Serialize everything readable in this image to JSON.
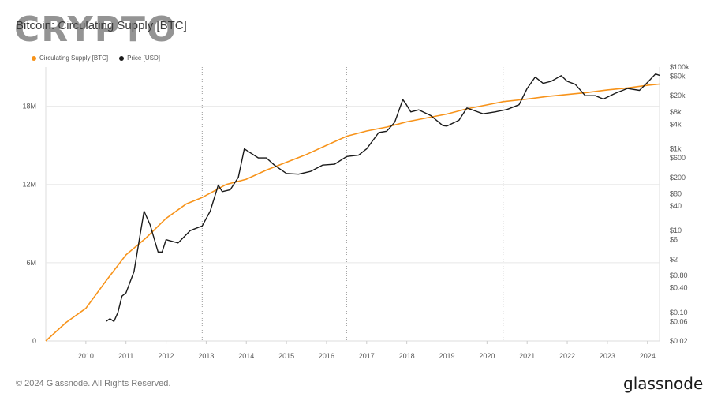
{
  "header": {
    "watermark": "CRYPTO",
    "title": "Bitcoin: Circulating Supply [BTC]"
  },
  "footer": {
    "copyright": "© 2024 Glassnode. All Rights Reserved.",
    "brand": "glassnode"
  },
  "colors": {
    "supply": "#f7931a",
    "price": "#1a1a1a",
    "grid": "#e8e8e8",
    "halving": "#9a9a9a"
  },
  "chart_data": {
    "type": "line",
    "title": "Bitcoin: Circulating Supply [BTC]",
    "legend": [
      "Circulating Supply [BTC]",
      "Price [USD]"
    ],
    "legend_position": "top-left",
    "halving_lines": true,
    "grid": true,
    "x_ticks": [
      "2010",
      "2011",
      "2012",
      "2013",
      "2014",
      "2015",
      "2016",
      "2017",
      "2018",
      "2019",
      "2020",
      "2021",
      "2022",
      "2023",
      "2024"
    ],
    "xlim": [
      2009.0,
      2024.3
    ],
    "y_left": {
      "label": "Circulating Supply [BTC]",
      "ticks": [
        "0",
        "6M",
        "12M",
        "18M"
      ],
      "range": [
        0,
        21000000
      ]
    },
    "y_right": {
      "label": "Price [USD]",
      "scale": "log",
      "ticks": [
        "$100k",
        "$60k",
        "$20k",
        "$8k",
        "$4k",
        "$1k",
        "$600",
        "$200",
        "$80",
        "$40",
        "$10",
        "$6",
        "$2",
        "$0.80",
        "$0.40",
        "$0.10",
        "$0.06",
        "$0.02"
      ],
      "range": [
        0.02,
        100000
      ]
    },
    "halvings": [
      2012.9,
      2016.5,
      2020.4
    ],
    "series": [
      {
        "name": "Circulating Supply [BTC]",
        "x": [
          2009.0,
          2009.5,
          2010.0,
          2010.5,
          2011.0,
          2011.5,
          2012.0,
          2012.5,
          2012.9,
          2013.5,
          2014.0,
          2014.5,
          2015.0,
          2015.5,
          2016.0,
          2016.5,
          2017.0,
          2017.5,
          2018.0,
          2018.5,
          2019.0,
          2019.5,
          2020.0,
          2020.4,
          2021.0,
          2021.5,
          2022.0,
          2022.5,
          2023.0,
          2023.5,
          2024.0,
          2024.3
        ],
        "values": [
          0,
          1400000,
          2500000,
          4600000,
          6600000,
          7900000,
          9400000,
          10500000,
          11000000,
          12000000,
          12400000,
          13100000,
          13700000,
          14300000,
          15000000,
          15700000,
          16100000,
          16400000,
          16800000,
          17100000,
          17400000,
          17800000,
          18100000,
          18350000,
          18550000,
          18750000,
          18900000,
          19050000,
          19250000,
          19400000,
          19600000,
          19700000
        ]
      },
      {
        "name": "Price [USD]",
        "x": [
          2010.5,
          2010.6,
          2010.7,
          2010.8,
          2010.9,
          2011.0,
          2011.2,
          2011.45,
          2011.6,
          2011.8,
          2011.9,
          2012.0,
          2012.3,
          2012.6,
          2012.9,
          2013.1,
          2013.3,
          2013.4,
          2013.6,
          2013.8,
          2013.95,
          2014.1,
          2014.3,
          2014.5,
          2014.7,
          2015.0,
          2015.3,
          2015.6,
          2015.9,
          2016.2,
          2016.5,
          2016.8,
          2017.0,
          2017.3,
          2017.5,
          2017.7,
          2017.9,
          2017.97,
          2018.1,
          2018.3,
          2018.6,
          2018.9,
          2019.0,
          2019.3,
          2019.5,
          2019.7,
          2019.9,
          2020.2,
          2020.5,
          2020.8,
          2021.0,
          2021.2,
          2021.4,
          2021.6,
          2021.85,
          2022.0,
          2022.2,
          2022.45,
          2022.7,
          2022.9,
          2023.2,
          2023.5,
          2023.8,
          2024.0,
          2024.2,
          2024.3
        ],
        "values": [
          0.06,
          0.07,
          0.06,
          0.1,
          0.25,
          0.3,
          1,
          30,
          14,
          3,
          3,
          6,
          5,
          10,
          13,
          30,
          130,
          90,
          100,
          200,
          1000,
          800,
          600,
          600,
          400,
          250,
          240,
          280,
          400,
          420,
          650,
          700,
          1000,
          2500,
          2700,
          4500,
          16000,
          13000,
          8000,
          9000,
          6500,
          3700,
          3600,
          5000,
          10000,
          8500,
          7200,
          8000,
          9200,
          12000,
          30000,
          57000,
          40000,
          45000,
          62000,
          45000,
          38000,
          20000,
          20000,
          16500,
          23000,
          30000,
          27000,
          42000,
          68000,
          63000
        ]
      }
    ]
  }
}
